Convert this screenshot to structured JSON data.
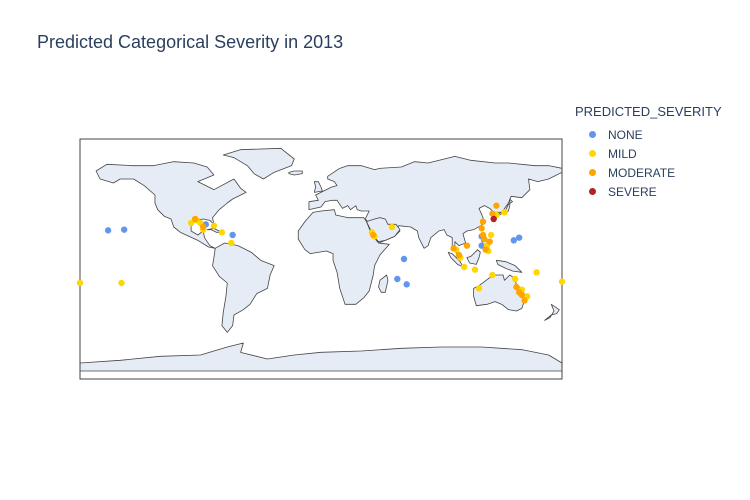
{
  "title": "Predicted Categorical Severity in 2013",
  "legend": {
    "title": "PREDICTED_SEVERITY",
    "items": [
      {
        "label": "NONE",
        "color": "#6495ed"
      },
      {
        "label": "MILD",
        "color": "#ffd700"
      },
      {
        "label": "MODERATE",
        "color": "#ffa500"
      },
      {
        "label": "SEVERE",
        "color": "#b22222"
      }
    ]
  },
  "colors": {
    "land": "#e5ecf6",
    "coast": "#444444",
    "frame": "#444444"
  },
  "chart_data": {
    "type": "scatter",
    "projection": "equirectangular",
    "lon_range": [
      -180,
      180
    ],
    "lat_range": [
      -90,
      90
    ],
    "series": [
      {
        "name": "NONE",
        "points": [
          [
            -159,
            21.5
          ],
          [
            -147,
            22
          ],
          [
            144,
            14
          ],
          [
            148,
            16
          ],
          [
            -86,
            26
          ],
          [
            -66,
            18
          ],
          [
            62,
            0
          ],
          [
            57,
            -15
          ],
          [
            64,
            -19
          ],
          [
            120,
            10
          ],
          [
            120,
            17
          ]
        ]
      },
      {
        "name": "MILD",
        "points": [
          [
            -180,
            -18
          ],
          [
            -149,
            -18
          ],
          [
            -90,
            27
          ],
          [
            -93,
            29
          ],
          [
            -97,
            27
          ],
          [
            -88,
            22
          ],
          [
            -80,
            25
          ],
          [
            -74,
            20
          ],
          [
            -67,
            12
          ],
          [
            38,
            20
          ],
          [
            40,
            17
          ],
          [
            53,
            24
          ],
          [
            101,
            7
          ],
          [
            104,
            1
          ],
          [
            107,
            -6
          ],
          [
            115,
            -8
          ],
          [
            125,
            6
          ],
          [
            124,
            10
          ],
          [
            127,
            18
          ],
          [
            131,
            33
          ],
          [
            137,
            35
          ],
          [
            145,
            -15
          ],
          [
            150,
            -23
          ],
          [
            154,
            -28
          ],
          [
            161,
            -10
          ],
          [
            180,
            -17
          ],
          [
            118,
            -22
          ],
          [
            128,
            -12
          ]
        ]
      },
      {
        "name": "MODERATE",
        "points": [
          [
            -94,
            30
          ],
          [
            -88,
            24
          ],
          [
            39,
            18
          ],
          [
            103,
            3
          ],
          [
            109,
            10
          ],
          [
            120,
            23
          ],
          [
            121,
            18
          ],
          [
            121,
            28
          ],
          [
            126,
            13
          ],
          [
            128,
            34
          ],
          [
            131,
            40
          ],
          [
            146,
            -21
          ],
          [
            148,
            -25
          ],
          [
            150,
            -27
          ],
          [
            152,
            -31
          ],
          [
            122,
            15
          ],
          [
            123,
            7
          ],
          [
            99,
            8
          ]
        ]
      },
      {
        "name": "SEVERE",
        "points": [
          [
            129,
            30
          ]
        ]
      }
    ]
  }
}
